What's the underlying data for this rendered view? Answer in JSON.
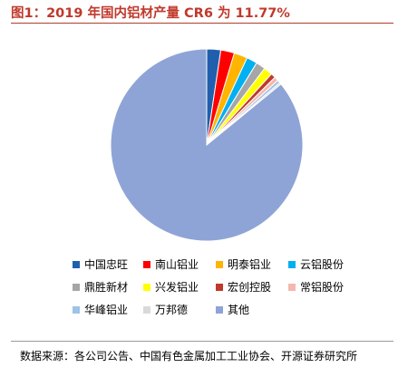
{
  "figure": {
    "title": "图1：2019 年国内铝材产量 CR6 为 11.77%",
    "source": "数据来源：各公司公告、中国有色金属加工工业协会、开源证券研究所"
  },
  "chart_data": {
    "type": "pie",
    "title": "图1：2019 年国内铝材产量 CR6 为 11.77%",
    "start_angle_deg": 90,
    "direction": "clockwise",
    "slices": [
      {
        "label": "中国忠旺",
        "value": 2.35,
        "color": "#1f5fae"
      },
      {
        "label": "南山铝业",
        "value": 2.3,
        "color": "#ff0000"
      },
      {
        "label": "明泰铝业",
        "value": 2.25,
        "color": "#ffb400"
      },
      {
        "label": "云铝股份",
        "value": 1.8,
        "color": "#00b0f0"
      },
      {
        "label": "鼎胜新材",
        "value": 1.6,
        "color": "#a6a6a6"
      },
      {
        "label": "兴发铝业",
        "value": 1.47,
        "color": "#ffff00"
      },
      {
        "label": "宏创控股",
        "value": 0.8,
        "color": "#c0392b"
      },
      {
        "label": "常铝股份",
        "value": 0.7,
        "color": "#f4b8b0"
      },
      {
        "label": "华峰铝业",
        "value": 0.5,
        "color": "#9dc3e6"
      },
      {
        "label": "万邦德",
        "value": 0.3,
        "color": "#d9d9d9"
      },
      {
        "label": "其他",
        "value": 85.93,
        "color": "#8fa4d6"
      }
    ],
    "legend_placement": "bottom"
  }
}
